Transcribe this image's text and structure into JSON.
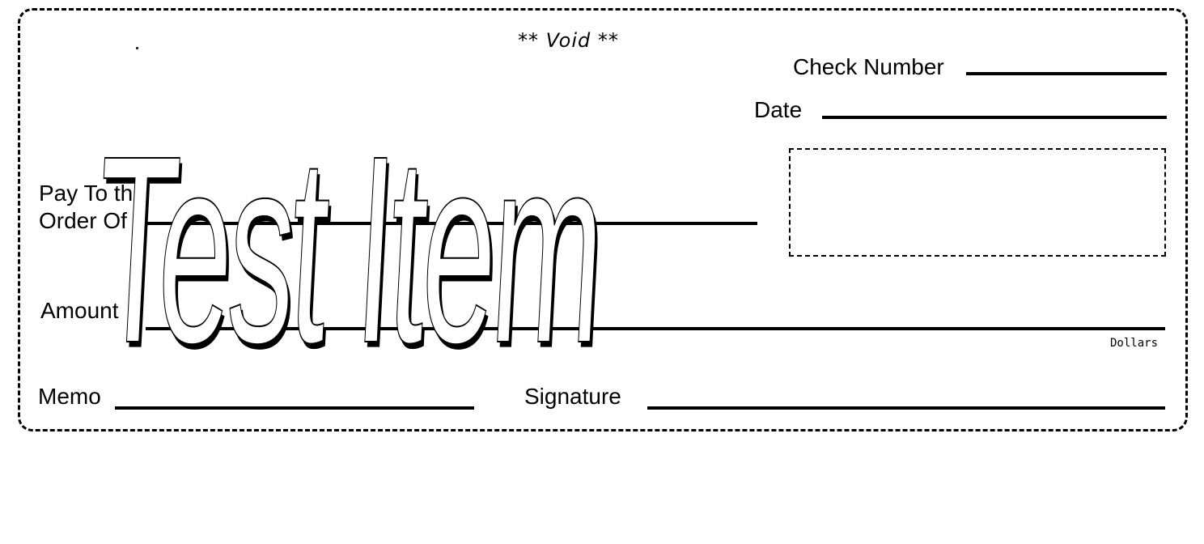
{
  "check": {
    "void_text": "** Void **",
    "check_number_label": "Check Number",
    "date_label": "Date",
    "pay_to_line1": "Pay To the",
    "pay_to_line2": "Order Of",
    "amount_label": "Amount",
    "dollars_label": "Dollars",
    "memo_label": "Memo",
    "signature_label": "Signature",
    "watermark_text": "Test Item"
  }
}
